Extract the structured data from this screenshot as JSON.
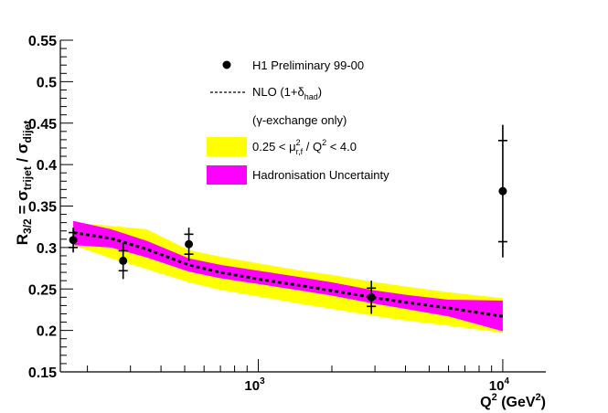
{
  "chart_data": {
    "type": "scatter",
    "title": "",
    "xlabel": {
      "base": "Q",
      "sup": "2",
      "unit_open": " (GeV",
      "unit_sup": "2",
      "unit_close": ")"
    },
    "ylabel": {
      "main": "R",
      "main_sub": "3/2",
      "eq": " = σ",
      "num_sub": "trijet",
      "slash": " / σ",
      "den_sub": "dijet"
    },
    "xscale": "log",
    "xlim": [
      155,
      15000
    ],
    "ylim": [
      0.15,
      0.55
    ],
    "yticks": [
      0.15,
      0.2,
      0.25,
      0.3,
      0.35,
      0.4,
      0.45,
      0.5,
      0.55
    ],
    "ytick_labels": [
      "0.15",
      "0.2",
      "0.25",
      "0.3",
      "0.35",
      "0.4",
      "0.45",
      "0.5",
      "0.55"
    ],
    "xtick_labels": [
      {
        "value": 1000,
        "base": "10",
        "exp": "3"
      },
      {
        "value": 10000,
        "base": "10",
        "exp": "4"
      }
    ],
    "data_points": {
      "name": "H1 Preliminary 99-00",
      "x": [
        175,
        280,
        520,
        2900,
        10000
      ],
      "y": [
        0.309,
        0.284,
        0.304,
        0.24,
        0.368
      ],
      "stat_err": [
        0.009,
        0.012,
        0.012,
        0.011,
        0.061
      ],
      "total_err": [
        0.015,
        0.022,
        0.02,
        0.02,
        0.08
      ]
    },
    "nlo": {
      "name": "NLO (1+δhad)",
      "x": [
        175,
        250,
        350,
        520,
        700,
        1000,
        1500,
        2000,
        2900,
        4000,
        6000,
        10000
      ],
      "y": [
        0.318,
        0.311,
        0.298,
        0.279,
        0.27,
        0.262,
        0.254,
        0.248,
        0.24,
        0.234,
        0.227,
        0.217
      ]
    },
    "scale_band": {
      "name": "0.25 < μ²r,f / Q² < 4.0",
      "color": "#ffff00",
      "x": [
        175,
        250,
        350,
        520,
        700,
        1000,
        1500,
        2000,
        2900,
        4000,
        6000,
        10000
      ],
      "lower": [
        0.303,
        0.287,
        0.274,
        0.258,
        0.249,
        0.241,
        0.232,
        0.226,
        0.218,
        0.212,
        0.206,
        0.197
      ],
      "upper": [
        0.33,
        0.326,
        0.322,
        0.297,
        0.289,
        0.281,
        0.272,
        0.267,
        0.259,
        0.253,
        0.246,
        0.239
      ]
    },
    "had_band": {
      "name": "Hadronisation Uncertainty",
      "color": "#ff00ff",
      "x": [
        175,
        250,
        350,
        520,
        700,
        1000,
        1500,
        2000,
        2900,
        4000,
        6000,
        10000
      ],
      "lower": [
        0.303,
        0.3,
        0.288,
        0.271,
        0.263,
        0.256,
        0.248,
        0.242,
        0.233,
        0.226,
        0.217,
        0.199
      ],
      "upper": [
        0.332,
        0.322,
        0.308,
        0.287,
        0.279,
        0.272,
        0.264,
        0.258,
        0.249,
        0.243,
        0.237,
        0.236
      ]
    },
    "legend": {
      "position": "top-center",
      "entries": [
        {
          "type": "marker",
          "label": "H1 Preliminary 99-00"
        },
        {
          "type": "dashed",
          "label_main": "NLO (1+δ",
          "label_sub": "had",
          "label_end": ")"
        },
        {
          "type": "none",
          "label": "(γ-exchange only)"
        },
        {
          "type": "yellow",
          "pre": "0.25 < μ",
          "sup": "2",
          "sub": "r,f",
          "post": " / Q",
          "sup2": "2",
          "end": " < 4.0"
        },
        {
          "type": "magenta",
          "label": "Hadronisation Uncertainty"
        }
      ]
    }
  }
}
